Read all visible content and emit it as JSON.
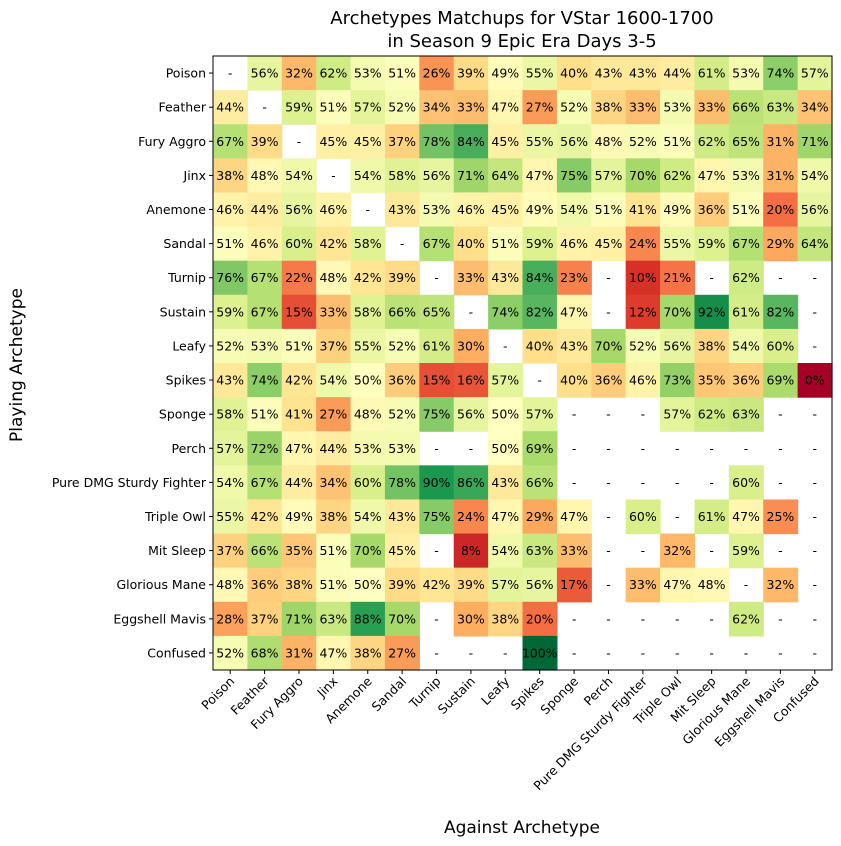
{
  "chart_data": {
    "type": "heatmap",
    "title_lines": [
      "Archetypes Matchups for VStar 1600-1700",
      "in Season 9 Epic Era Days 3-5"
    ],
    "xlabel": "Against Archetype",
    "ylabel": "Playing Archetype",
    "colormap": "RdYlGn",
    "value_range": [
      0,
      100
    ],
    "missing_label": "-",
    "rows": [
      "Poison",
      "Feather",
      "Fury Aggro",
      "Jinx",
      "Anemone",
      "Sandal",
      "Turnip",
      "Sustain",
      "Leafy",
      "Spikes",
      "Sponge",
      "Perch",
      "Pure DMG Sturdy Fighter",
      "Triple Owl",
      "Mit Sleep",
      "Glorious Mane",
      "Eggshell Mavis",
      "Confused"
    ],
    "columns": [
      "Poison",
      "Feather",
      "Fury Aggro",
      "Jinx",
      "Anemone",
      "Sandal",
      "Turnip",
      "Sustain",
      "Leafy",
      "Spikes",
      "Sponge",
      "Perch",
      "Pure DMG Sturdy Fighter",
      "Triple Owl",
      "Mit Sleep",
      "Glorious Mane",
      "Eggshell Mavis",
      "Confused"
    ],
    "values": [
      [
        null,
        56,
        32,
        62,
        53,
        51,
        26,
        39,
        49,
        55,
        40,
        43,
        43,
        44,
        61,
        53,
        74,
        57
      ],
      [
        44,
        null,
        59,
        51,
        57,
        52,
        34,
        33,
        47,
        27,
        52,
        38,
        33,
        53,
        33,
        66,
        63,
        34
      ],
      [
        67,
        39,
        null,
        45,
        45,
        37,
        78,
        84,
        45,
        55,
        56,
        48,
        52,
        51,
        62,
        65,
        31,
        71
      ],
      [
        38,
        48,
        54,
        null,
        54,
        58,
        56,
        71,
        64,
        47,
        75,
        57,
        70,
        62,
        47,
        53,
        31,
        54
      ],
      [
        46,
        44,
        56,
        46,
        null,
        43,
        53,
        46,
        45,
        49,
        54,
        51,
        41,
        49,
        36,
        51,
        20,
        56
      ],
      [
        51,
        46,
        60,
        42,
        58,
        null,
        67,
        40,
        51,
        59,
        46,
        45,
        24,
        55,
        59,
        67,
        29,
        64
      ],
      [
        76,
        67,
        22,
        48,
        42,
        39,
        null,
        33,
        43,
        84,
        23,
        null,
        10,
        21,
        null,
        62,
        null,
        null
      ],
      [
        59,
        67,
        15,
        33,
        58,
        66,
        65,
        null,
        74,
        82,
        47,
        null,
        12,
        70,
        92,
        61,
        82,
        null
      ],
      [
        52,
        53,
        51,
        37,
        55,
        52,
        61,
        30,
        null,
        40,
        43,
        70,
        52,
        56,
        38,
        54,
        60,
        null
      ],
      [
        43,
        74,
        42,
        54,
        50,
        36,
        15,
        16,
        57,
        null,
        40,
        36,
        46,
        73,
        35,
        36,
        69,
        0
      ],
      [
        58,
        51,
        41,
        27,
        48,
        52,
        75,
        56,
        50,
        57,
        null,
        null,
        null,
        57,
        62,
        63,
        null,
        null
      ],
      [
        57,
        72,
        47,
        44,
        53,
        53,
        null,
        null,
        50,
        69,
        null,
        null,
        null,
        null,
        null,
        null,
        null,
        null
      ],
      [
        54,
        67,
        44,
        34,
        60,
        78,
        90,
        86,
        43,
        66,
        null,
        null,
        null,
        null,
        null,
        60,
        null,
        null
      ],
      [
        55,
        42,
        49,
        38,
        54,
        43,
        75,
        24,
        47,
        29,
        47,
        null,
        60,
        null,
        61,
        47,
        25,
        null
      ],
      [
        37,
        66,
        35,
        51,
        70,
        45,
        null,
        8,
        54,
        63,
        33,
        null,
        null,
        32,
        null,
        59,
        null,
        null
      ],
      [
        48,
        36,
        38,
        51,
        50,
        39,
        42,
        39,
        57,
        56,
        17,
        null,
        33,
        47,
        48,
        null,
        32,
        null
      ],
      [
        28,
        37,
        71,
        63,
        88,
        70,
        null,
        30,
        38,
        20,
        null,
        null,
        null,
        null,
        null,
        62,
        null,
        null
      ],
      [
        52,
        68,
        31,
        47,
        38,
        27,
        null,
        null,
        null,
        100,
        null,
        null,
        null,
        null,
        null,
        null,
        null,
        null
      ]
    ]
  }
}
